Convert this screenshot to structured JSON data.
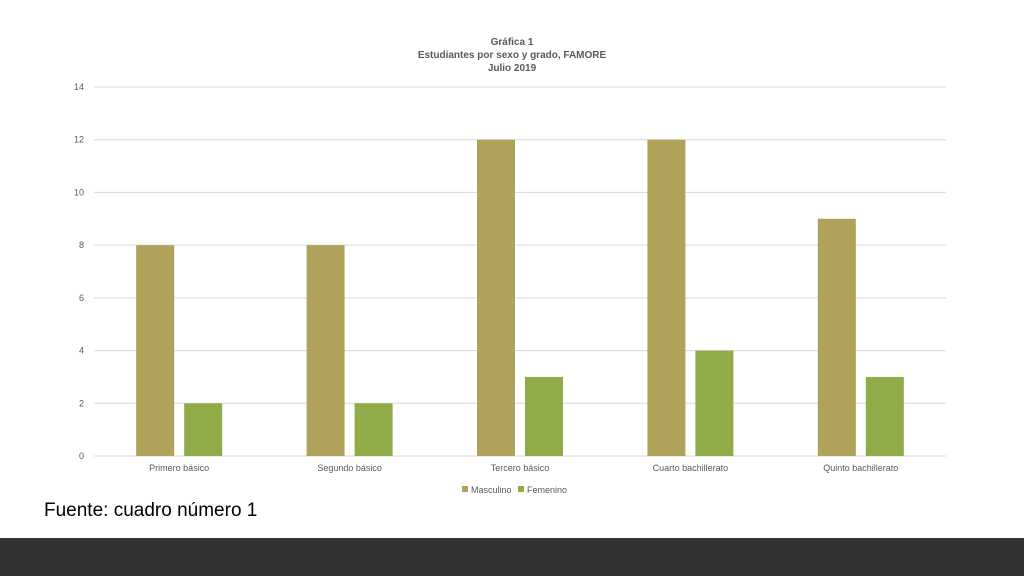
{
  "colors": {
    "masculino": "#b0a25a",
    "femenino": "#8fac48",
    "grid": "#d9d9d9",
    "text": "#595959",
    "footer": "#333333"
  },
  "chart_data": {
    "type": "bar",
    "title_lines": [
      "Gráfica 1",
      "Estudiantes por sexo y grado, FAMORE",
      "Julio 2019"
    ],
    "categories": [
      "Primero básico",
      "Segundo básico",
      "Tercero básico",
      "Cuarto bachillerato",
      "Quinto bachillerato"
    ],
    "series": [
      {
        "name": "Masculino",
        "values": [
          8,
          8,
          12,
          12,
          9
        ]
      },
      {
        "name": "Femenino",
        "values": [
          2,
          2,
          3,
          4,
          3
        ]
      }
    ],
    "yticks": [
      "0",
      "2",
      "4",
      "6",
      "8",
      "10",
      "12",
      "14"
    ],
    "ylim": [
      0,
      14
    ],
    "grid": true,
    "legend": "bottom"
  },
  "source_text": "Fuente: cuadro número 1"
}
